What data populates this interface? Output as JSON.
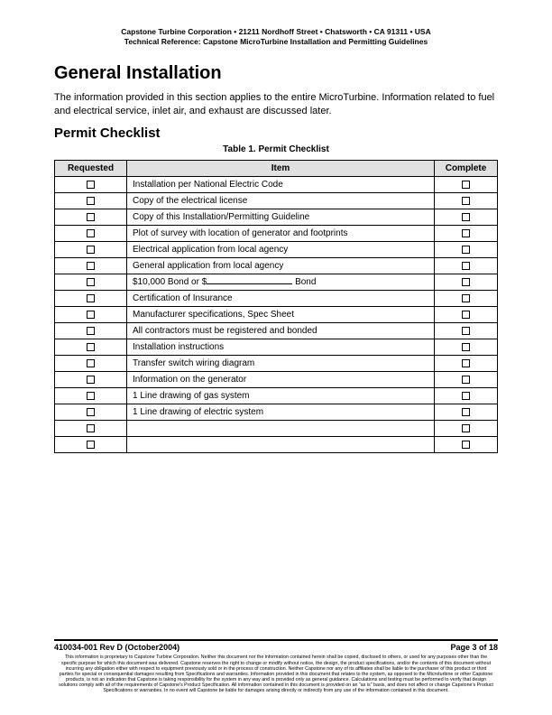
{
  "header": {
    "line1": "Capstone Turbine Corporation • 21211 Nordhoff Street • Chatsworth • CA 91311 • USA",
    "line2": "Technical Reference: Capstone MicroTurbine Installation and Permitting Guidelines"
  },
  "section": {
    "h1": "General Installation",
    "intro": "The information provided in this section applies to the entire MicroTurbine.  Information related to fuel and electrical service, inlet air, and exhaust are discussed later.",
    "h2": "Permit Checklist",
    "table_caption": "Table 1. Permit Checklist"
  },
  "table": {
    "head": {
      "requested": "Requested",
      "item": "Item",
      "complete": "Complete"
    },
    "rows": [
      {
        "item": "Installation per National Electric Code"
      },
      {
        "item": "Copy of the electrical license"
      },
      {
        "item": "Copy of this Installation/Permitting Guideline"
      },
      {
        "item": "Plot of survey with location of generator and footprints"
      },
      {
        "item": "Electrical application from local agency"
      },
      {
        "item": "General application from local agency"
      },
      {
        "item_prefix": "$10,000 Bond or $",
        "item_suffix": " Bond"
      },
      {
        "item": "Certification of Insurance"
      },
      {
        "item": "Manufacturer specifications, Spec Sheet"
      },
      {
        "item": "All contractors must be registered and bonded"
      },
      {
        "item": "Installation instructions"
      },
      {
        "item": "Transfer switch wiring diagram"
      },
      {
        "item": "Information on the generator"
      },
      {
        "item": "1 Line drawing of gas system"
      },
      {
        "item": "1 Line drawing of electric system"
      },
      {
        "item": ""
      },
      {
        "item": ""
      }
    ]
  },
  "footer": {
    "left": "410034-001 Rev D (October2004)",
    "right": "Page 3 of 18",
    "disclaimer": "This information is proprietary to Capstone Turbine Corporation. Neither this document nor the information contained herein shall be copied, disclosed to others, or used for any purposes other than the specific purpose for which this document was delivered. Capstone reserves the right to change or modify without notice, the design, the product specifications, and/or the contents of this document without incurring any obligation either with respect to equipment previously sold or in the process of construction. Neither Capstone nor any of its affiliates shall be liable to the purchaser of this product or third parties for special or consequential damages resulting from Specifications and warranties. Information provided in this document that relates to the system, as opposed to the Microturbine or other Capstone products, is not an indication that Capstone is taking responsibility for the system in any way and is provided only as general guidance. Calculations and testing must be performed to verify that design solutions comply with all of the requirements of Capstone's Product Specification. All information contained in this document is provided on an \"as is\" basis, and does not affect or change Capstone's Product Specifications or warranties. In no event will Capstone be liable for damages arising directly or indirectly from any use of the information contained in this document."
  }
}
